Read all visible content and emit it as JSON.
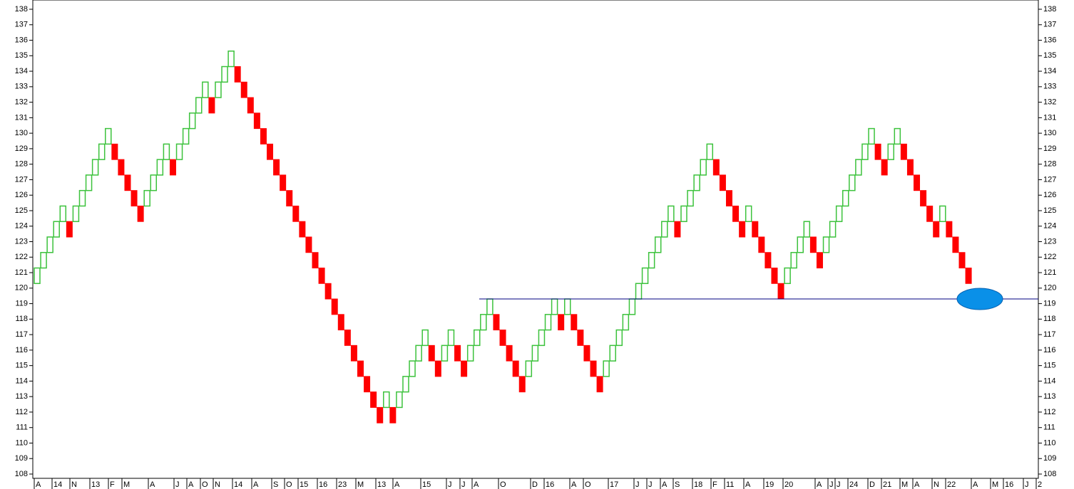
{
  "chart_data": {
    "type": "renko",
    "open": [
      120.3,
      121.3,
      122.3,
      123.3,
      124.3,
      124.3,
      124.3,
      125.3,
      126.3,
      127.3,
      128.3,
      129.3,
      129.3,
      128.3,
      127.3,
      126.3,
      125.3,
      125.3,
      126.3,
      127.3,
      128.3,
      128.3,
      128.3,
      129.3,
      130.3,
      131.3,
      132.3,
      132.3,
      132.3,
      133.3,
      134.3,
      134.3,
      133.3,
      132.3,
      131.3,
      130.3,
      129.3,
      128.3,
      127.3,
      126.3,
      125.3,
      124.3,
      123.3,
      122.3,
      121.3,
      120.3,
      119.3,
      118.3,
      117.3,
      116.3,
      115.3,
      114.3,
      113.3,
      112.3,
      112.3,
      112.3,
      112.3,
      113.3,
      114.3,
      115.3,
      116.3,
      116.3,
      115.3,
      115.3,
      116.3,
      116.3,
      115.3,
      115.3,
      116.3,
      117.3,
      118.3,
      118.3,
      117.3,
      116.3,
      115.3,
      114.3,
      114.3,
      115.3,
      116.3,
      117.3,
      118.3,
      118.3,
      118.3,
      118.3,
      117.3,
      116.3,
      115.3,
      114.3,
      114.3,
      115.3,
      116.3,
      117.3,
      118.3,
      119.3,
      120.3,
      121.3,
      122.3,
      123.3,
      124.3,
      124.3,
      124.3,
      125.3,
      126.3,
      127.3,
      128.3,
      128.3,
      127.3,
      126.3,
      125.3,
      124.3,
      124.3,
      124.3,
      123.3,
      122.3,
      121.3,
      120.3,
      120.3,
      121.3,
      122.3,
      123.3,
      123.3,
      122.3,
      122.3,
      123.3,
      124.3,
      125.3,
      126.3,
      127.3,
      128.3,
      129.3,
      129.3,
      128.3,
      128.3,
      129.3,
      129.3,
      128.3,
      127.3,
      126.3,
      125.3,
      124.3,
      124.3,
      124.3,
      123.3,
      122.3,
      121.3
    ],
    "close": [
      121.3,
      122.3,
      123.3,
      124.3,
      125.3,
      123.3,
      125.3,
      126.3,
      127.3,
      128.3,
      129.3,
      130.3,
      128.3,
      127.3,
      126.3,
      125.3,
      124.3,
      126.3,
      127.3,
      128.3,
      129.3,
      127.3,
      129.3,
      130.3,
      131.3,
      132.3,
      133.3,
      131.3,
      133.3,
      134.3,
      135.3,
      133.3,
      132.3,
      131.3,
      130.3,
      129.3,
      128.3,
      127.3,
      126.3,
      125.3,
      124.3,
      123.3,
      122.3,
      121.3,
      120.3,
      119.3,
      118.3,
      117.3,
      116.3,
      115.3,
      114.3,
      113.3,
      112.3,
      111.3,
      113.3,
      111.3,
      113.3,
      114.3,
      115.3,
      116.3,
      117.3,
      115.3,
      114.3,
      116.3,
      117.3,
      115.3,
      114.3,
      116.3,
      117.3,
      118.3,
      119.3,
      117.3,
      116.3,
      115.3,
      114.3,
      113.3,
      115.3,
      116.3,
      117.3,
      118.3,
      119.3,
      117.3,
      119.3,
      117.3,
      116.3,
      115.3,
      114.3,
      113.3,
      115.3,
      116.3,
      117.3,
      118.3,
      119.3,
      120.3,
      121.3,
      122.3,
      123.3,
      124.3,
      125.3,
      123.3,
      125.3,
      126.3,
      127.3,
      128.3,
      129.3,
      127.3,
      126.3,
      125.3,
      124.3,
      123.3,
      125.3,
      123.3,
      122.3,
      121.3,
      120.3,
      119.3,
      121.3,
      122.3,
      123.3,
      124.3,
      122.3,
      121.3,
      123.3,
      124.3,
      125.3,
      126.3,
      127.3,
      128.3,
      129.3,
      130.3,
      128.3,
      127.3,
      129.3,
      130.3,
      128.3,
      127.3,
      126.3,
      125.3,
      124.3,
      123.3,
      125.3,
      123.3,
      122.3,
      121.3,
      120.3
    ],
    "up_color": "#3cc23c",
    "down_color": "#ff0000",
    "reference_line": 119.3,
    "reference_color": "#000080",
    "marker_color": "#0a90e8",
    "x_labels": [
      "A",
      "14",
      "N",
      "13",
      "F",
      "M",
      "A",
      "J",
      "A",
      "O",
      "N",
      "14",
      "A",
      "S",
      "O",
      "15",
      "16",
      "23",
      "M",
      "13",
      "A",
      "15",
      "J",
      "J",
      "A",
      "O",
      "D",
      "16",
      "A",
      "O",
      "17",
      "J",
      "J",
      "A",
      "S",
      "18",
      "F",
      "11",
      "A",
      "19",
      "20",
      "A",
      "J",
      "J",
      "24",
      "D",
      "21",
      "M",
      "A",
      "N",
      "22",
      "A",
      "M",
      "16",
      "J",
      "2"
    ],
    "ylim": [
      108,
      138
    ],
    "yticks": [
      108,
      109,
      110,
      111,
      112,
      113,
      114,
      115,
      116,
      117,
      118,
      119,
      120,
      121,
      122,
      123,
      124,
      125,
      126,
      127,
      128,
      129,
      130,
      131,
      132,
      133,
      134,
      135,
      136,
      137,
      138
    ]
  }
}
